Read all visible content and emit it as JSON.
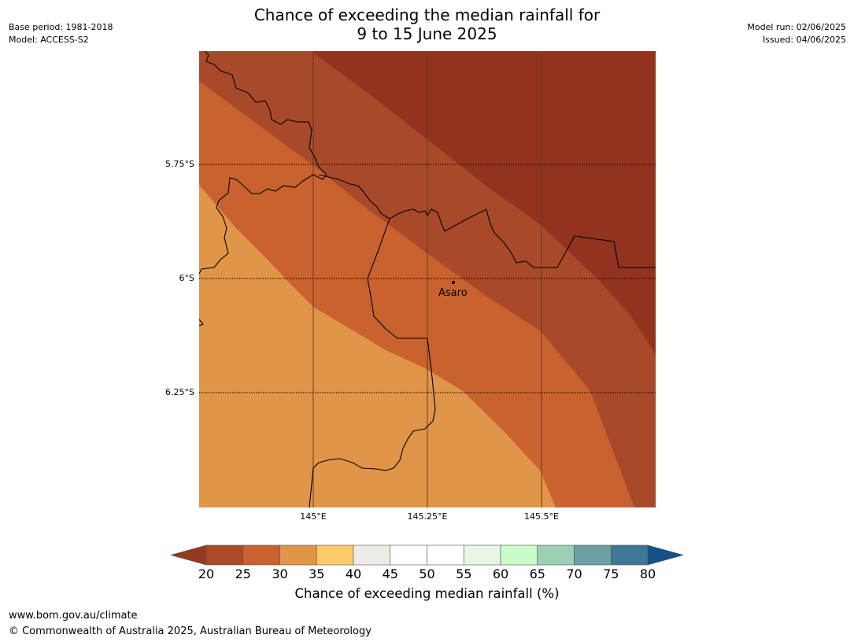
{
  "title": {
    "line1": "Chance of exceeding the median rainfall for",
    "line2": "9 to 15 June 2025"
  },
  "meta": {
    "base_period": "Base period: 1981-2018",
    "model": "Model: ACCESS-S2",
    "model_run": "Model run: 02/06/2025",
    "issued": "Issued: 04/06/2025"
  },
  "map": {
    "lat_labels": [
      "5.75°S",
      "6°S",
      "6.25°S"
    ],
    "lon_labels": [
      "145°E",
      "145.25°E",
      "145.5°E"
    ],
    "place": {
      "name": "Asaro"
    },
    "band_colors": {
      "20-25": "#a8492a",
      "25-30": "#c9622f",
      "30-35": "#e09548",
      "below-20": "#92331f"
    }
  },
  "colorbar": {
    "ticks": [
      "20",
      "25",
      "30",
      "35",
      "40",
      "45",
      "50",
      "55",
      "60",
      "65",
      "70",
      "75",
      "80"
    ],
    "colors": [
      "#ad4a28",
      "#c9622f",
      "#e09548",
      "#fdca69",
      "#eeebe6",
      "#ffffff",
      "#ffffff",
      "#e8f6e8",
      "#c8fcc8",
      "#9ccfb4",
      "#6ca1a3",
      "#3e7797"
    ],
    "under_color": "#953a21",
    "over_color": "#155088",
    "label": "Chance of exceeding median rainfall (%)"
  },
  "footer": {
    "url": "www.bom.gov.au/climate",
    "copyright": "© Commonwealth of Australia 2025, Australian Bureau of Meteorology"
  }
}
